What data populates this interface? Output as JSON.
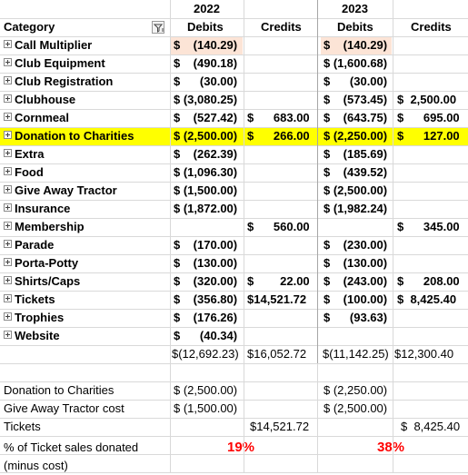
{
  "header": {
    "category_label": "Category",
    "year1": "2022",
    "year2": "2023",
    "debits_label": "Debits",
    "credits_label": "Credits"
  },
  "colors": {
    "highlight_yellow": "#ffff00",
    "highlight_peach": "#fce4d6",
    "pct_red": "#ff0000",
    "grid": "#d9d9d9"
  },
  "rows": [
    {
      "label": "Call Multiplier",
      "d22": "$    (140.29)",
      "c22": "",
      "d23": "$    (140.29)",
      "c23": "",
      "hl": "peach"
    },
    {
      "label": "Club Equipment",
      "d22": "$    (490.18)",
      "c22": "",
      "d23": "$ (1,600.68)",
      "c23": "",
      "hl": ""
    },
    {
      "label": "Club Registration",
      "d22": "$      (30.00)",
      "c22": "",
      "d23": "$      (30.00)",
      "c23": "",
      "hl": ""
    },
    {
      "label": "Clubhouse",
      "d22": "$ (3,080.25)",
      "c22": "",
      "d23": "$    (573.45)",
      "c23": "$  2,500.00",
      "hl": ""
    },
    {
      "label": "Cornmeal",
      "d22": "$    (527.42)",
      "c22": "$      683.00",
      "d23": "$    (643.75)",
      "c23": "$      695.00",
      "hl": ""
    },
    {
      "label": "Donation to Charities",
      "d22": "$ (2,500.00)",
      "c22": "$      266.00",
      "d23": "$ (2,250.00)",
      "c23": "$      127.00",
      "hl": "yellow"
    },
    {
      "label": "Extra",
      "d22": "$    (262.39)",
      "c22": "",
      "d23": "$    (185.69)",
      "c23": "",
      "hl": ""
    },
    {
      "label": "Food",
      "d22": "$ (1,096.30)",
      "c22": "",
      "d23": "$    (439.52)",
      "c23": "",
      "hl": ""
    },
    {
      "label": "Give Away Tractor",
      "d22": "$ (1,500.00)",
      "c22": "",
      "d23": "$ (2,500.00)",
      "c23": "",
      "hl": ""
    },
    {
      "label": "Insurance",
      "d22": "$ (1,872.00)",
      "c22": "",
      "d23": "$ (1,982.24)",
      "c23": "",
      "hl": ""
    },
    {
      "label": "Membership",
      "d22": "",
      "c22": "$      560.00",
      "d23": "",
      "c23": "$      345.00",
      "hl": ""
    },
    {
      "label": "Parade",
      "d22": "$    (170.00)",
      "c22": "",
      "d23": "$    (230.00)",
      "c23": "",
      "hl": ""
    },
    {
      "label": "Porta-Potty",
      "d22": "$    (130.00)",
      "c22": "",
      "d23": "$    (130.00)",
      "c23": "",
      "hl": ""
    },
    {
      "label": "Shirts/Caps",
      "d22": "$    (320.00)",
      "c22": "$        22.00",
      "d23": "$    (243.00)",
      "c23": "$      208.00",
      "hl": ""
    },
    {
      "label": "Tickets",
      "d22": "$    (356.80)",
      "c22": "$14,521.72",
      "d23": "$    (100.00)",
      "c23": "$  8,425.40",
      "hl": ""
    },
    {
      "label": "Trophies",
      "d22": "$    (176.26)",
      "c22": "",
      "d23": "$      (93.63)",
      "c23": "",
      "hl": ""
    },
    {
      "label": "Website",
      "d22": "$      (40.34)",
      "c22": "",
      "d23": "",
      "c23": "",
      "hl": ""
    }
  ],
  "totals": {
    "d22": "$(12,692.23)",
    "c22": "$16,052.72",
    "d23": "$(11,142.25)",
    "c23": "$12,300.40"
  },
  "summary": {
    "donation": {
      "label": "Donation to Charities",
      "v22": "$ (2,500.00)",
      "v23": "$ (2,250.00)"
    },
    "tractor": {
      "label": "Give Away Tractor cost",
      "v22": "$ (1,500.00)",
      "v23": "$ (2,500.00)"
    },
    "tickets": {
      "label": "Tickets",
      "v22": "$14,521.72",
      "v23": "$  8,425.40"
    },
    "pct": {
      "label": "% of Ticket sales donated",
      "v22": "19%",
      "v23": "38%"
    },
    "minus_cost": "(minus cost)"
  }
}
